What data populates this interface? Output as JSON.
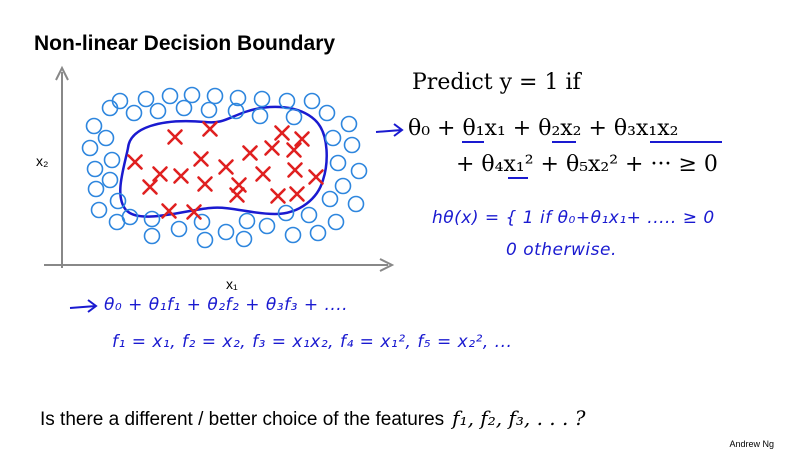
{
  "slide": {
    "title": "Non-linear Decision Boundary",
    "author": "Andrew Ng"
  },
  "plot": {
    "x_label": "x₁",
    "y_label": "x₂",
    "circle_color": "#2e86de",
    "cross_color": "#e02020",
    "boundary_color": "#1a1ad0"
  },
  "math": {
    "predict": "Predict y = 1 if",
    "line1": "θ₀ + θ₁x₁ + θ₂x₂ + θ₃x₁x₂",
    "line2": "+ θ₄x₁² + θ₅x₂² + ··· ≥ 0"
  },
  "handwriting": {
    "h_def": "hθ(x) = { 1   if   θ₀+θ₁x₁+ ..... ≥ 0",
    "h_else": "0   otherwise.",
    "f_line": "θ₀ + θ₁f₁ + θ₂f₂ + θ₃f₃ + ....",
    "f_defs": "f₁ = x₁,   f₂ = x₂,   f₃ = x₁x₂,   f₄ = x₁²,   f₅ = x₂², ..."
  },
  "question": {
    "text": "Is there a different / better choice of the features",
    "features": "f₁, f₂, f₃, . . . ?"
  },
  "points": {
    "circles": [
      [
        120,
        101
      ],
      [
        146,
        99
      ],
      [
        170,
        96
      ],
      [
        192,
        95
      ],
      [
        215,
        96
      ],
      [
        238,
        98
      ],
      [
        262,
        99
      ],
      [
        287,
        101
      ],
      [
        312,
        101
      ],
      [
        94,
        126
      ],
      [
        110,
        108
      ],
      [
        134,
        113
      ],
      [
        158,
        111
      ],
      [
        184,
        108
      ],
      [
        209,
        110
      ],
      [
        236,
        111
      ],
      [
        260,
        116
      ],
      [
        294,
        117
      ],
      [
        327,
        113
      ],
      [
        349,
        124
      ],
      [
        90,
        148
      ],
      [
        106,
        138
      ],
      [
        352,
        145
      ],
      [
        333,
        138
      ],
      [
        95,
        169
      ],
      [
        112,
        160
      ],
      [
        338,
        163
      ],
      [
        359,
        171
      ],
      [
        96,
        189
      ],
      [
        110,
        180
      ],
      [
        343,
        186
      ],
      [
        330,
        199
      ],
      [
        356,
        204
      ],
      [
        99,
        210
      ],
      [
        118,
        201
      ],
      [
        130,
        217
      ],
      [
        117,
        222
      ],
      [
        152,
        219
      ],
      [
        152,
        236
      ],
      [
        179,
        229
      ],
      [
        202,
        222
      ],
      [
        205,
        240
      ],
      [
        226,
        232
      ],
      [
        247,
        221
      ],
      [
        244,
        239
      ],
      [
        267,
        226
      ],
      [
        286,
        213
      ],
      [
        293,
        235
      ],
      [
        309,
        215
      ],
      [
        318,
        233
      ],
      [
        336,
        222
      ]
    ],
    "crosses": [
      [
        175,
        137
      ],
      [
        210,
        129
      ],
      [
        282,
        133
      ],
      [
        302,
        139
      ],
      [
        135,
        162
      ],
      [
        160,
        174
      ],
      [
        201,
        159
      ],
      [
        226,
        167
      ],
      [
        250,
        153
      ],
      [
        272,
        148
      ],
      [
        294,
        150
      ],
      [
        150,
        187
      ],
      [
        181,
        176
      ],
      [
        205,
        184
      ],
      [
        239,
        185
      ],
      [
        263,
        174
      ],
      [
        295,
        170
      ],
      [
        316,
        177
      ],
      [
        169,
        211
      ],
      [
        194,
        212
      ],
      [
        237,
        195
      ],
      [
        278,
        196
      ],
      [
        297,
        194
      ]
    ]
  }
}
